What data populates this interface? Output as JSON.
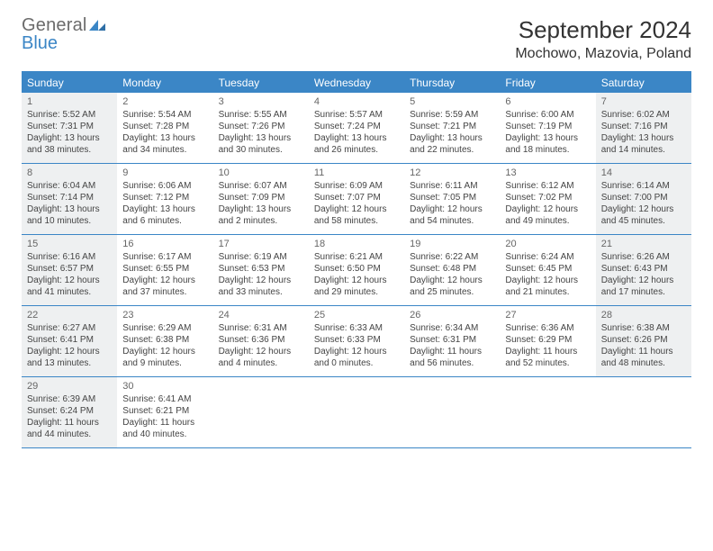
{
  "logo": {
    "line1": "General",
    "line2": "Blue"
  },
  "header": {
    "month": "September 2024",
    "location": "Mochowo, Mazovia, Poland"
  },
  "weekdays": [
    "Sunday",
    "Monday",
    "Tuesday",
    "Wednesday",
    "Thursday",
    "Friday",
    "Saturday"
  ],
  "colors": {
    "accent": "#3b86c6",
    "shade": "#eef0f1"
  },
  "weeks": [
    [
      {
        "n": "1",
        "shaded": true,
        "sr": "Sunrise: 5:52 AM",
        "ss": "Sunset: 7:31 PM",
        "d1": "Daylight: 13 hours",
        "d2": "and 38 minutes."
      },
      {
        "n": "2",
        "shaded": false,
        "sr": "Sunrise: 5:54 AM",
        "ss": "Sunset: 7:28 PM",
        "d1": "Daylight: 13 hours",
        "d2": "and 34 minutes."
      },
      {
        "n": "3",
        "shaded": false,
        "sr": "Sunrise: 5:55 AM",
        "ss": "Sunset: 7:26 PM",
        "d1": "Daylight: 13 hours",
        "d2": "and 30 minutes."
      },
      {
        "n": "4",
        "shaded": false,
        "sr": "Sunrise: 5:57 AM",
        "ss": "Sunset: 7:24 PM",
        "d1": "Daylight: 13 hours",
        "d2": "and 26 minutes."
      },
      {
        "n": "5",
        "shaded": false,
        "sr": "Sunrise: 5:59 AM",
        "ss": "Sunset: 7:21 PM",
        "d1": "Daylight: 13 hours",
        "d2": "and 22 minutes."
      },
      {
        "n": "6",
        "shaded": false,
        "sr": "Sunrise: 6:00 AM",
        "ss": "Sunset: 7:19 PM",
        "d1": "Daylight: 13 hours",
        "d2": "and 18 minutes."
      },
      {
        "n": "7",
        "shaded": true,
        "sr": "Sunrise: 6:02 AM",
        "ss": "Sunset: 7:16 PM",
        "d1": "Daylight: 13 hours",
        "d2": "and 14 minutes."
      }
    ],
    [
      {
        "n": "8",
        "shaded": true,
        "sr": "Sunrise: 6:04 AM",
        "ss": "Sunset: 7:14 PM",
        "d1": "Daylight: 13 hours",
        "d2": "and 10 minutes."
      },
      {
        "n": "9",
        "shaded": false,
        "sr": "Sunrise: 6:06 AM",
        "ss": "Sunset: 7:12 PM",
        "d1": "Daylight: 13 hours",
        "d2": "and 6 minutes."
      },
      {
        "n": "10",
        "shaded": false,
        "sr": "Sunrise: 6:07 AM",
        "ss": "Sunset: 7:09 PM",
        "d1": "Daylight: 13 hours",
        "d2": "and 2 minutes."
      },
      {
        "n": "11",
        "shaded": false,
        "sr": "Sunrise: 6:09 AM",
        "ss": "Sunset: 7:07 PM",
        "d1": "Daylight: 12 hours",
        "d2": "and 58 minutes."
      },
      {
        "n": "12",
        "shaded": false,
        "sr": "Sunrise: 6:11 AM",
        "ss": "Sunset: 7:05 PM",
        "d1": "Daylight: 12 hours",
        "d2": "and 54 minutes."
      },
      {
        "n": "13",
        "shaded": false,
        "sr": "Sunrise: 6:12 AM",
        "ss": "Sunset: 7:02 PM",
        "d1": "Daylight: 12 hours",
        "d2": "and 49 minutes."
      },
      {
        "n": "14",
        "shaded": true,
        "sr": "Sunrise: 6:14 AM",
        "ss": "Sunset: 7:00 PM",
        "d1": "Daylight: 12 hours",
        "d2": "and 45 minutes."
      }
    ],
    [
      {
        "n": "15",
        "shaded": true,
        "sr": "Sunrise: 6:16 AM",
        "ss": "Sunset: 6:57 PM",
        "d1": "Daylight: 12 hours",
        "d2": "and 41 minutes."
      },
      {
        "n": "16",
        "shaded": false,
        "sr": "Sunrise: 6:17 AM",
        "ss": "Sunset: 6:55 PM",
        "d1": "Daylight: 12 hours",
        "d2": "and 37 minutes."
      },
      {
        "n": "17",
        "shaded": false,
        "sr": "Sunrise: 6:19 AM",
        "ss": "Sunset: 6:53 PM",
        "d1": "Daylight: 12 hours",
        "d2": "and 33 minutes."
      },
      {
        "n": "18",
        "shaded": false,
        "sr": "Sunrise: 6:21 AM",
        "ss": "Sunset: 6:50 PM",
        "d1": "Daylight: 12 hours",
        "d2": "and 29 minutes."
      },
      {
        "n": "19",
        "shaded": false,
        "sr": "Sunrise: 6:22 AM",
        "ss": "Sunset: 6:48 PM",
        "d1": "Daylight: 12 hours",
        "d2": "and 25 minutes."
      },
      {
        "n": "20",
        "shaded": false,
        "sr": "Sunrise: 6:24 AM",
        "ss": "Sunset: 6:45 PM",
        "d1": "Daylight: 12 hours",
        "d2": "and 21 minutes."
      },
      {
        "n": "21",
        "shaded": true,
        "sr": "Sunrise: 6:26 AM",
        "ss": "Sunset: 6:43 PM",
        "d1": "Daylight: 12 hours",
        "d2": "and 17 minutes."
      }
    ],
    [
      {
        "n": "22",
        "shaded": true,
        "sr": "Sunrise: 6:27 AM",
        "ss": "Sunset: 6:41 PM",
        "d1": "Daylight: 12 hours",
        "d2": "and 13 minutes."
      },
      {
        "n": "23",
        "shaded": false,
        "sr": "Sunrise: 6:29 AM",
        "ss": "Sunset: 6:38 PM",
        "d1": "Daylight: 12 hours",
        "d2": "and 9 minutes."
      },
      {
        "n": "24",
        "shaded": false,
        "sr": "Sunrise: 6:31 AM",
        "ss": "Sunset: 6:36 PM",
        "d1": "Daylight: 12 hours",
        "d2": "and 4 minutes."
      },
      {
        "n": "25",
        "shaded": false,
        "sr": "Sunrise: 6:33 AM",
        "ss": "Sunset: 6:33 PM",
        "d1": "Daylight: 12 hours",
        "d2": "and 0 minutes."
      },
      {
        "n": "26",
        "shaded": false,
        "sr": "Sunrise: 6:34 AM",
        "ss": "Sunset: 6:31 PM",
        "d1": "Daylight: 11 hours",
        "d2": "and 56 minutes."
      },
      {
        "n": "27",
        "shaded": false,
        "sr": "Sunrise: 6:36 AM",
        "ss": "Sunset: 6:29 PM",
        "d1": "Daylight: 11 hours",
        "d2": "and 52 minutes."
      },
      {
        "n": "28",
        "shaded": true,
        "sr": "Sunrise: 6:38 AM",
        "ss": "Sunset: 6:26 PM",
        "d1": "Daylight: 11 hours",
        "d2": "and 48 minutes."
      }
    ],
    [
      {
        "n": "29",
        "shaded": true,
        "sr": "Sunrise: 6:39 AM",
        "ss": "Sunset: 6:24 PM",
        "d1": "Daylight: 11 hours",
        "d2": "and 44 minutes."
      },
      {
        "n": "30",
        "shaded": false,
        "sr": "Sunrise: 6:41 AM",
        "ss": "Sunset: 6:21 PM",
        "d1": "Daylight: 11 hours",
        "d2": "and 40 minutes."
      },
      {
        "n": "",
        "shaded": false
      },
      {
        "n": "",
        "shaded": false
      },
      {
        "n": "",
        "shaded": false
      },
      {
        "n": "",
        "shaded": false
      },
      {
        "n": "",
        "shaded": false
      }
    ]
  ]
}
